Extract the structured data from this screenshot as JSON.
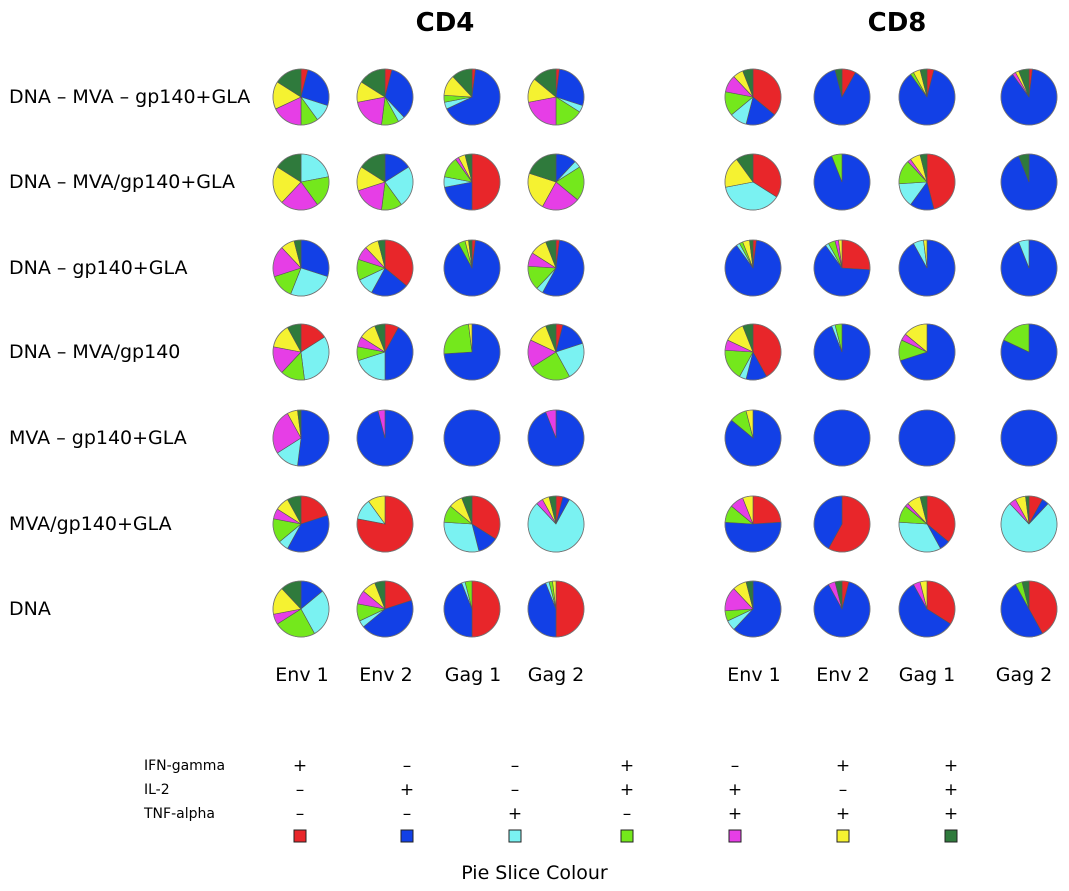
{
  "chart_data": {
    "type": "pie",
    "panels": [
      "CD4",
      "CD8"
    ],
    "columns": [
      "Env 1",
      "Env 2",
      "Gag 1",
      "Gag 2"
    ],
    "rows": [
      "DNA – MVA – gp140+GLA",
      "DNA – MVA/gp140+GLA",
      "DNA – gp140+GLA",
      "DNA – MVA/gp140",
      "MVA – gp140+GLA",
      "MVA/gp140+GLA",
      "DNA"
    ],
    "slice_categories": [
      "IFN+ IL2- TNF-",
      "IFN- IL2+ TNF-",
      "IFN- IL2- TNF+",
      "IFN+ IL2+ TNF-",
      "IFN- IL2+ TNF+",
      "IFN+ IL2- TNF+",
      "IFN+ IL2+ TNF+"
    ],
    "slice_colors": [
      "#e8262a",
      "#1240e6",
      "#7af2f2",
      "#74e81c",
      "#e63ee6",
      "#f5f231",
      "#2f7a3c"
    ],
    "pies": {
      "CD4": [
        [
          [
            4,
            26,
            10,
            10,
            18,
            16,
            16
          ],
          [
            4,
            34,
            4,
            10,
            20,
            12,
            16
          ],
          [
            2,
            66,
            4,
            4,
            0,
            12,
            12
          ],
          [
            2,
            28,
            4,
            16,
            22,
            14,
            14
          ]
        ],
        [
          [
            0,
            0,
            22,
            18,
            22,
            22,
            16
          ],
          [
            0,
            16,
            24,
            12,
            18,
            14,
            16
          ],
          [
            50,
            22,
            6,
            12,
            2,
            4,
            4
          ],
          [
            0,
            12,
            4,
            20,
            22,
            22,
            20
          ]
        ],
        [
          [
            0,
            30,
            26,
            14,
            18,
            8,
            4
          ],
          [
            36,
            22,
            10,
            12,
            8,
            8,
            4
          ],
          [
            2,
            90,
            0,
            4,
            0,
            2,
            2
          ],
          [
            2,
            56,
            4,
            14,
            8,
            10,
            6
          ]
        ],
        [
          [
            16,
            0,
            32,
            14,
            16,
            14,
            8
          ],
          [
            8,
            42,
            20,
            8,
            6,
            10,
            6
          ],
          [
            0,
            74,
            0,
            24,
            0,
            2,
            0
          ],
          [
            4,
            16,
            22,
            24,
            16,
            12,
            6
          ]
        ],
        [
          [
            0,
            52,
            14,
            0,
            26,
            6,
            2
          ],
          [
            0,
            96,
            0,
            0,
            4,
            0,
            0
          ],
          [
            0,
            100,
            0,
            0,
            0,
            0,
            0
          ],
          [
            0,
            94,
            0,
            0,
            6,
            0,
            0
          ]
        ],
        [
          [
            20,
            38,
            6,
            14,
            6,
            8,
            8
          ],
          [
            78,
            0,
            12,
            0,
            0,
            10,
            0
          ],
          [
            34,
            12,
            30,
            10,
            0,
            8,
            6
          ],
          [
            4,
            4,
            80,
            0,
            4,
            4,
            4
          ]
        ],
        [
          [
            0,
            14,
            28,
            24,
            6,
            16,
            12
          ],
          [
            20,
            44,
            4,
            10,
            8,
            8,
            6
          ],
          [
            50,
            44,
            2,
            4,
            0,
            0,
            0
          ],
          [
            50,
            44,
            2,
            2,
            0,
            2,
            0
          ]
        ]
      ],
      "CD8": [
        [
          [
            36,
            18,
            10,
            14,
            10,
            6,
            6
          ],
          [
            8,
            88,
            0,
            0,
            0,
            0,
            4
          ],
          [
            4,
            86,
            0,
            2,
            0,
            4,
            4
          ],
          [
            2,
            88,
            0,
            0,
            2,
            2,
            6
          ]
        ],
        [
          [
            34,
            0,
            38,
            0,
            0,
            18,
            10
          ],
          [
            0,
            94,
            0,
            6,
            0,
            0,
            0
          ],
          [
            46,
            14,
            14,
            14,
            2,
            6,
            4
          ],
          [
            0,
            94,
            0,
            0,
            0,
            0,
            6
          ]
        ],
        [
          [
            2,
            88,
            2,
            2,
            0,
            4,
            2
          ],
          [
            26,
            64,
            2,
            4,
            2,
            2,
            0
          ],
          [
            0,
            92,
            6,
            0,
            0,
            2,
            0
          ],
          [
            0,
            94,
            6,
            0,
            0,
            0,
            0
          ]
        ],
        [
          [
            42,
            12,
            4,
            18,
            6,
            12,
            6
          ],
          [
            0,
            94,
            2,
            4,
            0,
            0,
            0
          ],
          [
            0,
            70,
            0,
            12,
            4,
            14,
            0
          ],
          [
            0,
            82,
            0,
            18,
            0,
            0,
            0
          ]
        ],
        [
          [
            0,
            86,
            0,
            10,
            0,
            4,
            0
          ],
          [
            0,
            100,
            0,
            0,
            0,
            0,
            0
          ],
          [
            0,
            100,
            0,
            0,
            0,
            0,
            0
          ],
          [
            0,
            100,
            0,
            0,
            0,
            0,
            0
          ]
        ],
        [
          [
            24,
            52,
            0,
            10,
            8,
            6,
            0
          ],
          [
            58,
            42,
            0,
            0,
            0,
            0,
            0
          ],
          [
            36,
            6,
            34,
            10,
            2,
            8,
            4
          ],
          [
            8,
            4,
            76,
            0,
            4,
            6,
            2
          ]
        ],
        [
          [
            0,
            62,
            6,
            6,
            14,
            8,
            4
          ],
          [
            4,
            88,
            0,
            0,
            4,
            0,
            4
          ],
          [
            34,
            58,
            0,
            0,
            4,
            4,
            0
          ],
          [
            42,
            50,
            0,
            4,
            0,
            0,
            4
          ]
        ]
      ]
    },
    "legend": {
      "labels": [
        "IFN-gamma",
        "IL-2",
        "TNF-alpha"
      ],
      "signs": [
        [
          "+",
          "–",
          "–",
          "+",
          "–",
          "+",
          "+"
        ],
        [
          "–",
          "+",
          "–",
          "+",
          "+",
          "–",
          "+"
        ],
        [
          "–",
          "–",
          "+",
          "–",
          "+",
          "+",
          "+"
        ]
      ],
      "footer": "Pie Slice Colour"
    }
  }
}
